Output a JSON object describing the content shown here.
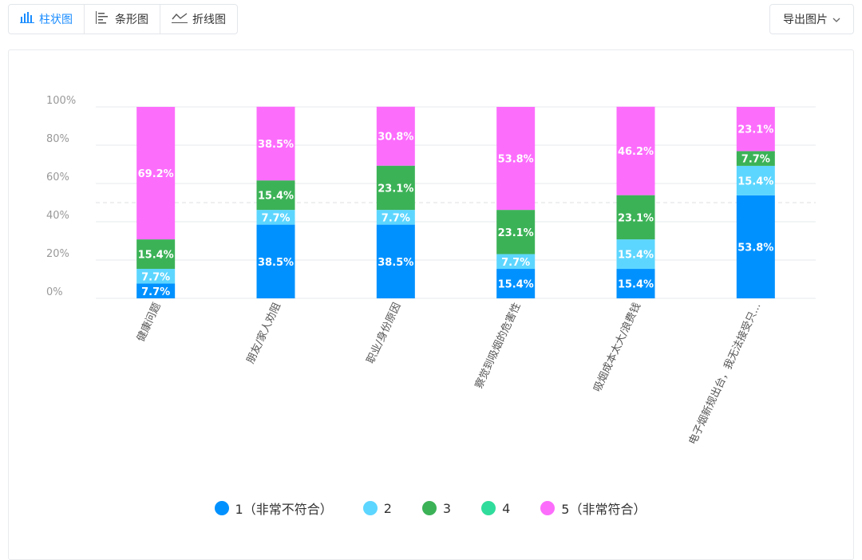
{
  "toolbar": {
    "tabs": [
      {
        "label": "柱状图",
        "icon": "bar-chart-icon",
        "active": true
      },
      {
        "label": "条形图",
        "icon": "horizontal-bar-icon",
        "active": false
      },
      {
        "label": "折线图",
        "icon": "line-chart-icon",
        "active": false
      }
    ],
    "export_label": "导出图片"
  },
  "colors": {
    "accent": "#1a8cff",
    "series": [
      "#0091ff",
      "#5dd6ff",
      "#3cb257",
      "#30dc9b",
      "#fc6dfc"
    ]
  },
  "chart_data": {
    "type": "bar",
    "stacked": true,
    "categories": [
      "健康问题",
      "朋友/家人劝阻",
      "职业/身份原因",
      "察觉到吸烟的危害性",
      "吸烟成本太大/浪费钱",
      "电子烟新规出台，我无法接受只..."
    ],
    "series": [
      {
        "name": "1（非常不符合）",
        "values": [
          7.7,
          38.5,
          38.5,
          15.4,
          15.4,
          53.8
        ]
      },
      {
        "name": "2",
        "values": [
          7.7,
          7.7,
          7.7,
          7.7,
          15.4,
          15.4
        ]
      },
      {
        "name": "3",
        "values": [
          15.4,
          15.4,
          23.1,
          23.1,
          23.1,
          7.7
        ]
      },
      {
        "name": "4",
        "values": [
          0,
          0,
          0,
          0,
          0,
          0
        ]
      },
      {
        "name": "5（非常符合）",
        "values": [
          69.2,
          38.5,
          30.8,
          53.8,
          46.2,
          23.1
        ]
      }
    ],
    "yticks": [
      "0%",
      "20%",
      "40%",
      "60%",
      "80%",
      "100%"
    ],
    "ylim": [
      0,
      100
    ],
    "grid": true,
    "legend": "bottom"
  }
}
